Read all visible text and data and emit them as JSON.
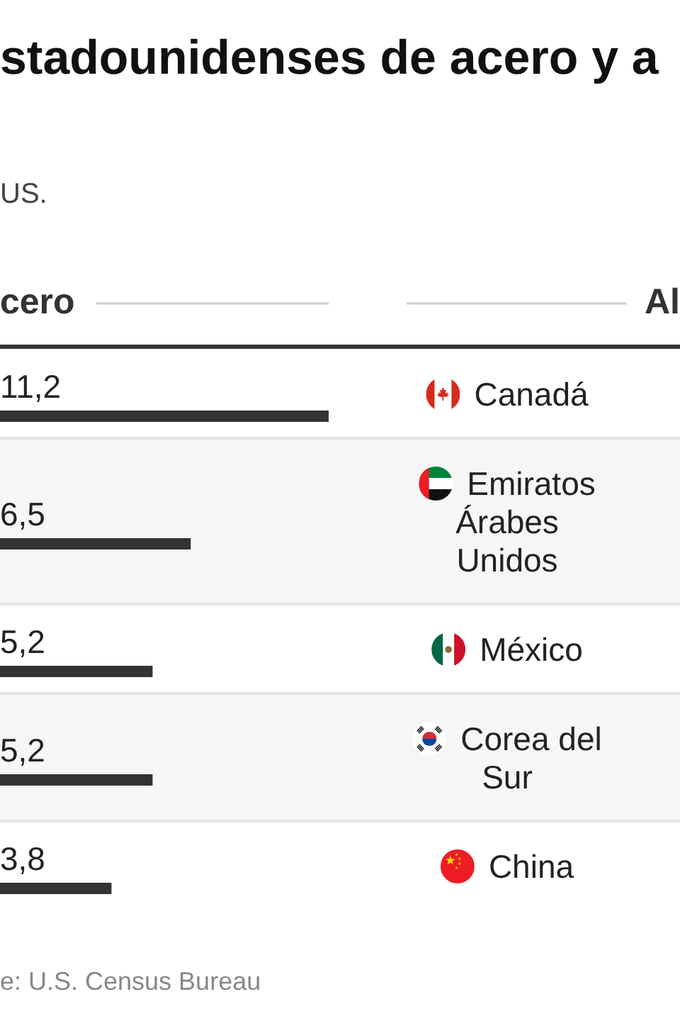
{
  "chart_data": {
    "type": "bar",
    "orientation": "horizontal",
    "title": "stadounidenses de acero y a",
    "subtitle": "US.",
    "categories": [
      "Canadá",
      "Emiratos Árabes Unidos",
      "México",
      "Corea del Sur",
      "China"
    ],
    "series": [
      {
        "name": "cero",
        "color": "#333333",
        "values": [
          11.2,
          6.5,
          5.2,
          5.2,
          3.8
        ],
        "value_labels": [
          "11,2",
          "6,5",
          "5,2",
          "5,2",
          "3,8"
        ]
      },
      {
        "name": "Al",
        "color": "#333333",
        "values": [
          null,
          null,
          null,
          null,
          null
        ]
      }
    ],
    "annotations": [
      "e: U.S. Census Bureau"
    ]
  }
}
